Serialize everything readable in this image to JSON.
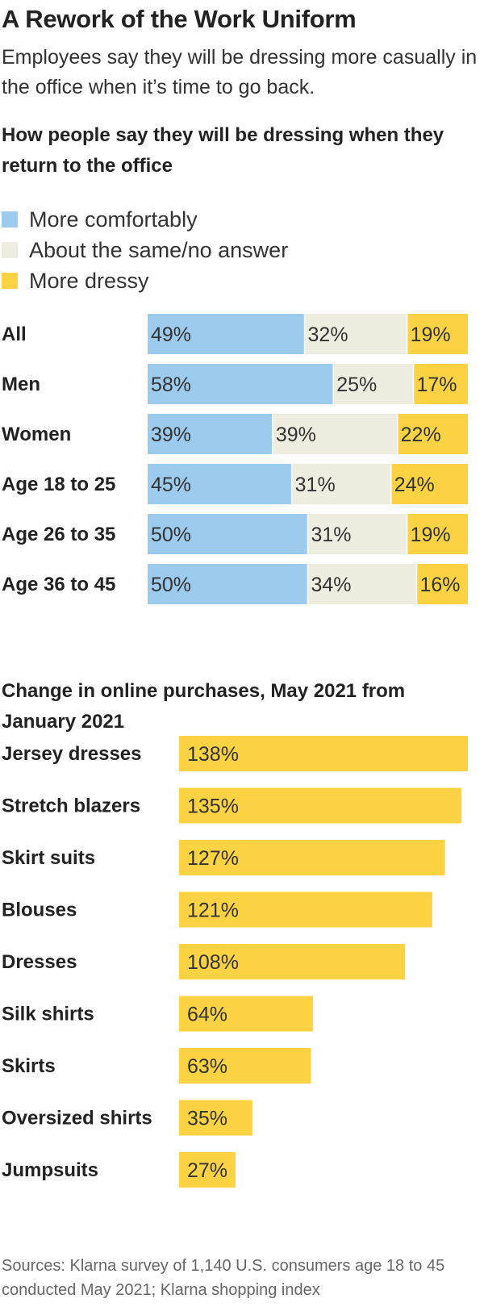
{
  "headline": "A Rework of the Work Uniform",
  "subhead": "Employees say they will be dressing more casually in the office when it’s time to go back.",
  "colors": {
    "comfortable": "#9ccbee",
    "same": "#eeede0",
    "dressy": "#fdd344",
    "text": "#222222",
    "muted": "#666666"
  },
  "chart_data": [
    {
      "type": "bar",
      "stacked": true,
      "orientation": "horizontal",
      "title": "How people say they will be dressing when they return to the office",
      "legend": [
        "More comfortably",
        "About the same/no answer",
        "More dressy"
      ],
      "legend_position": "top-left",
      "categories": [
        "All",
        "Men",
        "Women",
        "Age 18 to 25",
        "Age 26 to 35",
        "Age 36 to 45"
      ],
      "series": [
        {
          "name": "More comfortably",
          "values": [
            49,
            58,
            39,
            45,
            50,
            50
          ],
          "labels": [
            "49%",
            "58%",
            "39%",
            "45%",
            "50%",
            "50%"
          ]
        },
        {
          "name": "About the same/no answer",
          "values": [
            32,
            25,
            39,
            31,
            31,
            34
          ],
          "labels": [
            "32%",
            "25%",
            "39%",
            "31%",
            "31%",
            "34%"
          ]
        },
        {
          "name": "More dressy",
          "values": [
            19,
            17,
            22,
            24,
            19,
            16
          ],
          "labels": [
            "19%",
            "17%",
            "22%",
            "24%",
            "19%",
            "16%"
          ]
        }
      ],
      "xlim": [
        0,
        100
      ],
      "grid": false
    },
    {
      "type": "bar",
      "orientation": "horizontal",
      "title": "Change in online purchases, May 2021 from January 2021",
      "categories": [
        "Jersey dresses",
        "Stretch blazers",
        "Skirt suits",
        "Blouses",
        "Dresses",
        "Silk shirts",
        "Skirts",
        "Oversized shirts",
        "Jumpsuits"
      ],
      "values": [
        138,
        135,
        127,
        121,
        108,
        64,
        63,
        35,
        27
      ],
      "labels": [
        "138%",
        "135%",
        "127%",
        "121%",
        "108%",
        "64%",
        "63%",
        "35%",
        "27%"
      ],
      "xlim": [
        0,
        138
      ],
      "grid": false
    }
  ],
  "source": "Sources: Klarna survey of 1,140 U.S. consumers age 18 to 45 conducted May 2021; Klarna shopping index"
}
